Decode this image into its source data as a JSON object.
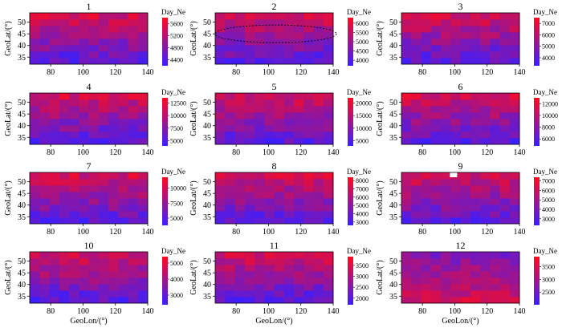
{
  "figure": {
    "variable": "Day_Ne",
    "xlabel": "GeoLon/(°)",
    "ylabel": "GeoLat/(°)"
  },
  "chart_data": [
    {
      "type": "heatmap",
      "title": "1",
      "legend": "Day_Ne",
      "xlabel": "",
      "ylabel": "GeoLat/(°)",
      "xlim": [
        67,
        140
      ],
      "ylim": [
        32,
        54
      ],
      "x_ticks": [
        "80",
        "100",
        "120",
        "140"
      ],
      "y_ticks": [
        "35",
        "40",
        "45",
        "50"
      ],
      "colorbar_ticks": [
        "4400",
        "4800",
        "5200",
        "5600"
      ],
      "value_range": [
        4200,
        5800
      ],
      "seed": 1
    },
    {
      "type": "heatmap",
      "title": "2",
      "legend": "Day_Ne",
      "xlabel": "",
      "ylabel": "GeoLat/(°)",
      "xlim": [
        67,
        140
      ],
      "ylim": [
        32,
        54
      ],
      "x_ticks": [
        "80",
        "100",
        "120",
        "140"
      ],
      "y_ticks": [
        "35",
        "40",
        "45",
        "50"
      ],
      "colorbar_ticks": [
        "4000",
        "4500",
        "5000",
        "5500",
        "6000"
      ],
      "value_range": [
        3700,
        6300
      ],
      "seed": 2,
      "annotation": "dotted ellipse around the 40°–50° latitude band"
    },
    {
      "type": "heatmap",
      "title": "3",
      "legend": "Day_Ne",
      "xlabel": "",
      "ylabel": "GeoLat/(°)",
      "xlim": [
        67,
        140
      ],
      "ylim": [
        32,
        54
      ],
      "x_ticks": [
        "80",
        "100",
        "120",
        "140"
      ],
      "y_ticks": [
        "35",
        "40",
        "45",
        "50"
      ],
      "colorbar_ticks": [
        "4000",
        "5000",
        "6000",
        "7000"
      ],
      "value_range": [
        3300,
        7500
      ],
      "seed": 3
    },
    {
      "type": "heatmap",
      "title": "4",
      "legend": "Day_Ne",
      "xlabel": "",
      "ylabel": "GeoLat/(°)",
      "xlim": [
        67,
        140
      ],
      "ylim": [
        32,
        54
      ],
      "x_ticks": [
        "80",
        "100",
        "120",
        "140"
      ],
      "y_ticks": [
        "35",
        "40",
        "45",
        "50"
      ],
      "colorbar_ticks": [
        "5000",
        "7500",
        "10000",
        "12500"
      ],
      "value_range": [
        4000,
        13500
      ],
      "seed": 4
    },
    {
      "type": "heatmap",
      "title": "5",
      "legend": "Day_Ne",
      "xlabel": "",
      "ylabel": "GeoLat/(°)",
      "xlim": [
        67,
        140
      ],
      "ylim": [
        32,
        54
      ],
      "x_ticks": [
        "80",
        "100",
        "120",
        "140"
      ],
      "y_ticks": [
        "35",
        "40",
        "45",
        "50"
      ],
      "colorbar_ticks": [
        "5000",
        "10000",
        "15000",
        "20000"
      ],
      "value_range": [
        3000,
        22000
      ],
      "seed": 5
    },
    {
      "type": "heatmap",
      "title": "6",
      "legend": "Day_Ne",
      "xlabel": "",
      "ylabel": "GeoLat/(°)",
      "xlim": [
        67,
        140
      ],
      "ylim": [
        32,
        54
      ],
      "x_ticks": [
        "80",
        "100",
        "120",
        "140"
      ],
      "y_ticks": [
        "35",
        "40",
        "45",
        "50"
      ],
      "colorbar_ticks": [
        "6000",
        "8000",
        "10000",
        "12000"
      ],
      "value_range": [
        4800,
        13000
      ],
      "seed": 6
    },
    {
      "type": "heatmap",
      "title": "7",
      "legend": "Day_Ne",
      "xlabel": "",
      "ylabel": "GeoLat/(°)",
      "xlim": [
        67,
        140
      ],
      "ylim": [
        32,
        54
      ],
      "x_ticks": [
        "80",
        "100",
        "120",
        "140"
      ],
      "y_ticks": [
        "35",
        "40",
        "45",
        "50"
      ],
      "colorbar_ticks": [
        "5000",
        "7500",
        "10000"
      ],
      "value_range": [
        3800,
        11800
      ],
      "seed": 7
    },
    {
      "type": "heatmap",
      "title": "8",
      "legend": "Day_Ne",
      "xlabel": "",
      "ylabel": "GeoLat/(°)",
      "xlim": [
        67,
        140
      ],
      "ylim": [
        32,
        54
      ],
      "x_ticks": [
        "80",
        "100",
        "120",
        "140"
      ],
      "y_ticks": [
        "35",
        "40",
        "45",
        "50"
      ],
      "colorbar_ticks": [
        "3000",
        "4000",
        "5000",
        "6000",
        "7000",
        "8000"
      ],
      "value_range": [
        2600,
        8400
      ],
      "seed": 8
    },
    {
      "type": "heatmap",
      "title": "9",
      "legend": "Day_Ne",
      "xlabel": "",
      "ylabel": "GeoLat/(°)",
      "xlim": [
        67,
        140
      ],
      "ylim": [
        32,
        54
      ],
      "x_ticks": [
        "80",
        "100",
        "120",
        "140"
      ],
      "y_ticks": [
        "35",
        "40",
        "45",
        "50"
      ],
      "colorbar_ticks": [
        "3000",
        "4000",
        "5000",
        "6000",
        "7000"
      ],
      "value_range": [
        2300,
        7400
      ],
      "seed": 9
    },
    {
      "type": "heatmap",
      "title": "10",
      "legend": "Day_Ne",
      "xlabel": "GeoLon/(°)",
      "ylabel": "GeoLat/(°)",
      "xlim": [
        67,
        140
      ],
      "ylim": [
        32,
        54
      ],
      "x_ticks": [
        "80",
        "100",
        "120",
        "140"
      ],
      "y_ticks": [
        "35",
        "40",
        "45",
        "50"
      ],
      "colorbar_ticks": [
        "3000",
        "4000",
        "5000"
      ],
      "value_range": [
        2400,
        5400
      ],
      "seed": 10
    },
    {
      "type": "heatmap",
      "title": "11",
      "legend": "Day_Ne",
      "xlabel": "GeoLon/(°)",
      "ylabel": "GeoLat/(°)",
      "xlim": [
        67,
        140
      ],
      "ylim": [
        32,
        54
      ],
      "x_ticks": [
        "80",
        "100",
        "120",
        "140"
      ],
      "y_ticks": [
        "35",
        "40",
        "45",
        "50"
      ],
      "colorbar_ticks": [
        "2000",
        "2500",
        "3000",
        "3500"
      ],
      "value_range": [
        1700,
        3900
      ],
      "seed": 11
    },
    {
      "type": "heatmap",
      "title": "12",
      "legend": "Day_Ne",
      "xlabel": "GeoLon/(°)",
      "ylabel": "GeoLat/(°)",
      "xlim": [
        67,
        140
      ],
      "ylim": [
        32,
        54
      ],
      "x_ticks": [
        "80",
        "100",
        "120",
        "140"
      ],
      "y_ticks": [
        "35",
        "40",
        "45",
        "50"
      ],
      "colorbar_ticks": [
        "2500",
        "3000",
        "3500"
      ],
      "value_range": [
        2000,
        3900
      ],
      "seed": 12
    }
  ]
}
